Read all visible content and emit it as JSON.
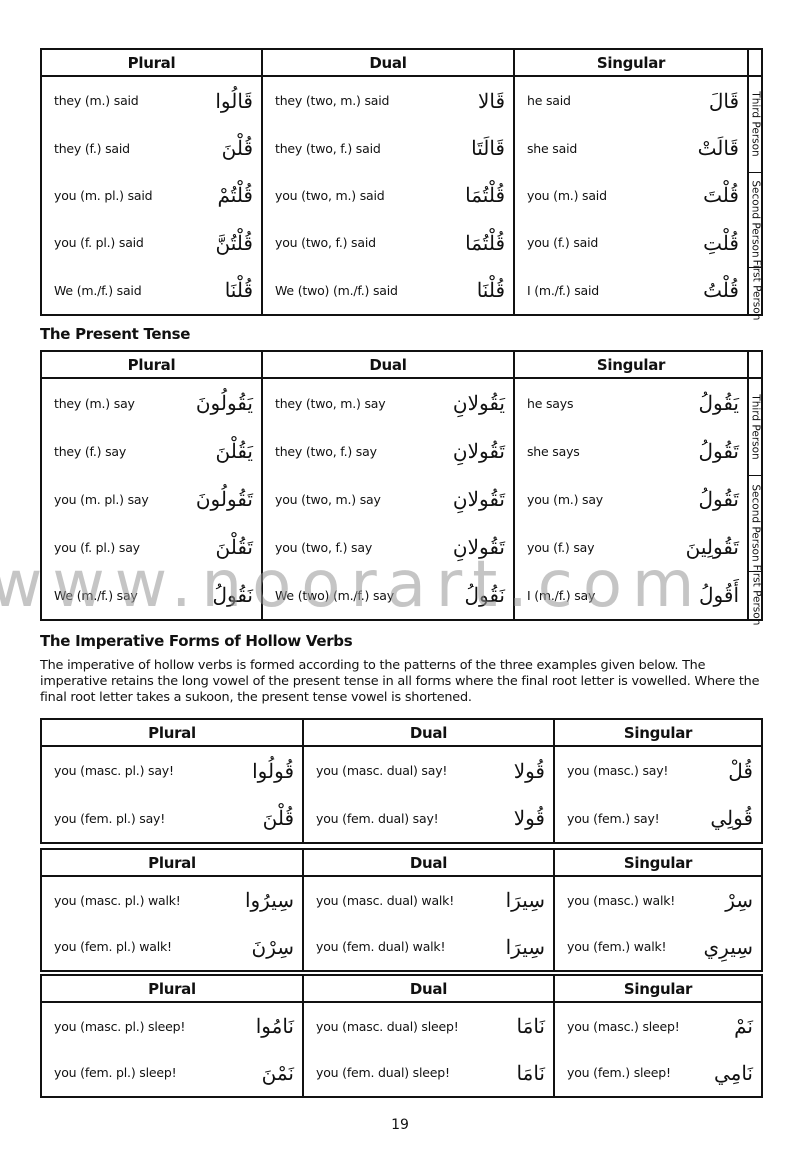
{
  "headers": [
    "Plural",
    "Dual",
    "Singular"
  ],
  "persons": [
    "Third Person",
    "Second Person",
    "First Person"
  ],
  "past_table": {
    "rows": [
      [
        [
          "they (m.) said",
          "قَالُوا"
        ],
        [
          "they (two, m.) said",
          "قَالا"
        ],
        [
          "he said",
          "قَالَ"
        ]
      ],
      [
        [
          "they (f.) said",
          "قُلْنَ"
        ],
        [
          "they (two, f.) said",
          "قَالَتَا"
        ],
        [
          "she said",
          "قَالَتْ"
        ]
      ],
      [
        [
          "you (m. pl.) said",
          "قُلْتُمْ"
        ],
        [
          "you (two, m.) said",
          "قُلْتُمَا"
        ],
        [
          "you (m.) said",
          "قُلْتَ"
        ]
      ],
      [
        [
          "you (f. pl.) said",
          "قُلْتُنَّ"
        ],
        [
          "you (two, f.) said",
          "قُلْتُمَا"
        ],
        [
          "you (f.) said",
          "قُلْتِ"
        ]
      ],
      [
        [
          "We (m./f.) said",
          "قُلْنَا"
        ],
        [
          "We (two) (m./f.) said",
          "قُلْنَا"
        ],
        [
          "I (m./f.) said",
          "قُلْتُ"
        ]
      ]
    ]
  },
  "present_title": "The Present Tense",
  "present_table": {
    "rows": [
      [
        [
          "they (m.) say",
          "يَقُولُونَ"
        ],
        [
          "they (two, m.) say",
          "يَقُولانِ"
        ],
        [
          "he says",
          "يَقُولُ"
        ]
      ],
      [
        [
          "they (f.) say",
          "يَقُلْنَ"
        ],
        [
          "they (two, f.) say",
          "تَقُولانِ"
        ],
        [
          "she says",
          "تَقُولُ"
        ]
      ],
      [
        [
          "you (m. pl.) say",
          "تَقُولُونَ"
        ],
        [
          "you (two, m.) say",
          "تَقُولانِ"
        ],
        [
          "you (m.) say",
          "تَقُولُ"
        ]
      ],
      [
        [
          "you (f. pl.) say",
          "تَقُلْنَ"
        ],
        [
          "you (two, f.) say",
          "تَقُولانِ"
        ],
        [
          "you (f.) say",
          "تَقُولِينَ"
        ]
      ],
      [
        [
          "We (m./f.) say",
          "نَقُولُ"
        ],
        [
          "We (two) (m./f.) say",
          "نَقُولُ"
        ],
        [
          "I (m./f.) say",
          "أَقُولُ"
        ]
      ]
    ]
  },
  "imperative_title": "The Imperative Forms of Hollow Verbs",
  "imperative_text": "The imperative of hollow verbs is formed according to the patterns of the three examples given below. The imperative retains the long vowel of the present tense in all forms where the final root letter is vowelled. Where the final root letter takes a sukoon, the present tense vowel is shortened.",
  "imperative_tables": [
    {
      "rows": [
        [
          [
            "you (masc. pl.) say!",
            "قُولُوا"
          ],
          [
            "you (masc. dual) say!",
            "قُولا"
          ],
          [
            "you (masc.) say!",
            "قُلْ"
          ]
        ],
        [
          [
            "you (fem. pl.) say!",
            "قُلْنَ"
          ],
          [
            "you (fem. dual) say!",
            "قُولا"
          ],
          [
            "you (fem.) say!",
            "قُولِي"
          ]
        ]
      ]
    },
    {
      "rows": [
        [
          [
            "you (masc. pl.) walk!",
            "سِيرُوا"
          ],
          [
            "you (masc. dual) walk!",
            "سِيرَا"
          ],
          [
            "you (masc.) walk!",
            "سِرْ"
          ]
        ],
        [
          [
            "you (fem. pl.) walk!",
            "سِرْنَ"
          ],
          [
            "you (fem. dual) walk!",
            "سِيرَا"
          ],
          [
            "you (fem.) walk!",
            "سِيرِي"
          ]
        ]
      ]
    },
    {
      "rows": [
        [
          [
            "you (masc. pl.) sleep!",
            "نَامُوا"
          ],
          [
            "you (masc. dual) sleep!",
            "نَامَا"
          ],
          [
            "you (masc.) sleep!",
            "نَمْ"
          ]
        ],
        [
          [
            "you (fem. pl.) sleep!",
            "نَمْنَ"
          ],
          [
            "you (fem. dual) sleep!",
            "نَامَا"
          ],
          [
            "you (fem.) sleep!",
            "نَامِي"
          ]
        ]
      ]
    }
  ],
  "watermark": "www.noorart.com",
  "page_number": "19"
}
